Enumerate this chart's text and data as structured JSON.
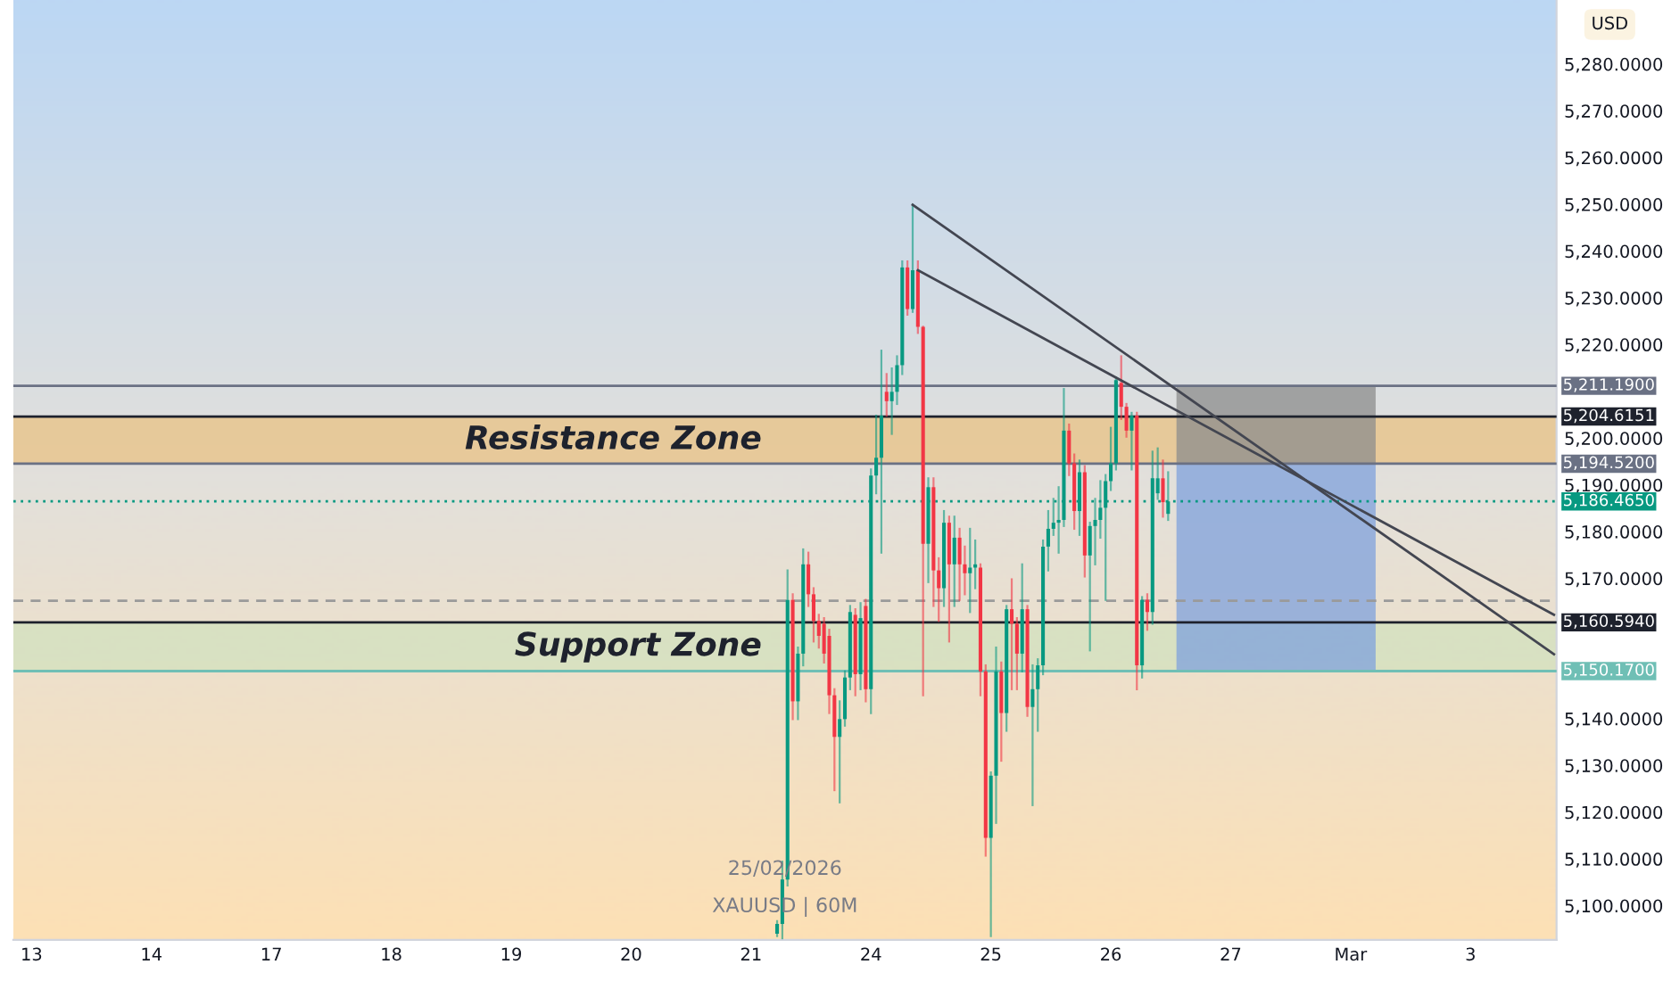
{
  "chart_data": {
    "type": "candlestick",
    "ylabel": "USD",
    "categories": [
      "13",
      null,
      null,
      null,
      null,
      null,
      null,
      null,
      null,
      null,
      null,
      null,
      null,
      null,
      null,
      null,
      null,
      null,
      null,
      null,
      null,
      null,
      null,
      "14",
      null,
      null,
      null,
      null,
      null,
      null,
      null,
      null,
      null,
      null,
      null,
      null,
      null,
      null,
      null,
      null,
      null,
      null,
      null,
      null,
      null,
      null,
      "17",
      null,
      null,
      null,
      null,
      null,
      null,
      null,
      null,
      null,
      null,
      null,
      null,
      null,
      null,
      null,
      null,
      null,
      null,
      null,
      null,
      null,
      null,
      "18",
      null,
      null,
      null,
      null,
      null,
      null,
      null,
      null,
      null,
      null,
      null,
      null,
      null,
      null,
      null,
      null,
      null,
      null,
      null,
      null,
      null,
      null,
      "19",
      null,
      null,
      null,
      null,
      null,
      null,
      null,
      null,
      null,
      null,
      null,
      null,
      null,
      null,
      null,
      null,
      null,
      null,
      null,
      null,
      null,
      null,
      "20",
      null,
      null,
      null,
      null,
      null,
      null,
      null,
      null,
      null,
      null,
      null,
      null,
      null,
      null,
      null,
      null,
      null,
      null,
      null,
      null,
      null,
      null,
      "21",
      null,
      null,
      null,
      null,
      null,
      null,
      null,
      null,
      null,
      null,
      null,
      null,
      null,
      null,
      null,
      null,
      null,
      null,
      null,
      null,
      null,
      null,
      "24",
      null,
      null,
      null,
      null,
      null,
      null,
      null,
      null,
      null,
      null,
      null,
      null,
      null,
      null,
      null,
      null,
      null,
      null,
      null,
      null,
      null,
      null,
      "25",
      null,
      null,
      null,
      null,
      null,
      null,
      null,
      null,
      null,
      null,
      null,
      null,
      null,
      null,
      null,
      null,
      null,
      null,
      null,
      null,
      null,
      null,
      "26",
      null,
      null,
      null,
      null,
      null,
      null,
      null,
      null,
      null,
      null,
      null,
      null,
      null,
      null,
      null,
      null,
      null,
      null,
      null,
      null,
      null,
      null,
      "27",
      null,
      null,
      null,
      null,
      null,
      null,
      null,
      null,
      null,
      null,
      null,
      null,
      null,
      null,
      null,
      null,
      null,
      null,
      null,
      null,
      null,
      null,
      "Mar",
      null,
      null,
      null,
      null,
      null,
      null,
      null,
      null,
      null,
      null,
      null,
      null,
      null,
      null,
      null,
      null,
      null,
      null,
      null,
      null,
      null,
      null,
      "3",
      null,
      null,
      null,
      null,
      null,
      null,
      null,
      null,
      null,
      null,
      null,
      null,
      null,
      null,
      null,
      null
    ],
    "ohlc": [
      null,
      null,
      null,
      null,
      null,
      null,
      null,
      null,
      null,
      null,
      null,
      null,
      null,
      null,
      null,
      null,
      null,
      null,
      null,
      null,
      null,
      null,
      null,
      null,
      null,
      null,
      null,
      null,
      null,
      null,
      null,
      null,
      null,
      null,
      null,
      null,
      null,
      null,
      null,
      null,
      null,
      null,
      null,
      null,
      null,
      null,
      null,
      null,
      null,
      null,
      null,
      null,
      null,
      null,
      null,
      null,
      null,
      null,
      null,
      null,
      null,
      null,
      null,
      null,
      null,
      null,
      null,
      null,
      null,
      null,
      null,
      null,
      null,
      null,
      null,
      null,
      null,
      null,
      null,
      null,
      null,
      null,
      null,
      null,
      null,
      null,
      null,
      null,
      null,
      null,
      null,
      null,
      null,
      null,
      null,
      null,
      null,
      null,
      null,
      null,
      null,
      null,
      null,
      null,
      null,
      null,
      null,
      null,
      null,
      null,
      null,
      null,
      null,
      null,
      null,
      null,
      null,
      null,
      null,
      null,
      null,
      null,
      null,
      null,
      null,
      null,
      null,
      null,
      null,
      null,
      null,
      null,
      null,
      null,
      null,
      null,
      null,
      null,
      null,
      null,
      null,
      null,
      null,
      [
        5094.0,
        5096.7,
        5093.5,
        5096.1
      ],
      [
        5096.1,
        5109.4,
        5093.0,
        5105.6
      ],
      [
        5105.6,
        5171.7,
        5104.3,
        5165.4
      ],
      [
        5165.4,
        5166.6,
        5139.9,
        5143.7
      ],
      [
        5143.7,
        5155.2,
        5139.9,
        5153.9
      ],
      [
        5153.9,
        5176.2,
        5151.4,
        5173.0
      ],
      [
        5173.0,
        5175.5,
        5164.1,
        5166.6
      ],
      [
        5166.6,
        5167.9,
        5156.5,
        5160.9
      ],
      [
        5160.9,
        5162.2,
        5155.2,
        5157.7
      ],
      [
        5160.3,
        5161.5,
        5152.0,
        5153.9
      ],
      [
        5157.7,
        5159.0,
        5141.2,
        5145.0
      ],
      [
        5145.0,
        5146.3,
        5124.7,
        5136.1
      ],
      [
        5136.1,
        5143.7,
        5122.1,
        5139.9
      ],
      [
        5139.9,
        5150.1,
        5138.5,
        5148.8
      ],
      [
        5148.8,
        5164.1,
        5146.3,
        5162.8
      ],
      [
        5162.2,
        5163.4,
        5145.0,
        5149.5
      ],
      [
        5149.5,
        5164.7,
        5146.3,
        5161.5
      ],
      [
        5164.1,
        5165.4,
        5143.7,
        5146.3
      ],
      [
        5146.3,
        5193.3,
        5141.2,
        5192.0
      ],
      [
        5192.0,
        5204.8,
        5188.2,
        5195.8
      ],
      [
        5195.8,
        5218.7,
        5175.5,
        5204.8
      ],
      [
        5209.9,
        5213.7,
        5204.8,
        5207.9
      ],
      [
        5207.9,
        5214.9,
        5200.9,
        5209.9
      ],
      [
        5209.9,
        5217.5,
        5207.3,
        5215.6
      ],
      [
        5215.6,
        5237.8,
        5213.7,
        5236.5
      ],
      [
        5236.5,
        5237.8,
        5226.4,
        5227.6
      ],
      [
        5227.6,
        5249.9,
        5227.0,
        5235.9
      ],
      [
        5235.9,
        5237.8,
        5222.5,
        5223.8
      ],
      [
        5223.8,
        5223.8,
        5145.0,
        5177.4
      ],
      [
        5177.4,
        5191.4,
        5169.2,
        5189.5
      ],
      [
        5189.5,
        5191.4,
        5164.1,
        5171.7
      ],
      [
        5171.7,
        5174.3,
        5160.9,
        5167.9
      ],
      [
        5167.9,
        5184.4,
        5164.1,
        5181.9
      ],
      [
        5181.9,
        5183.2,
        5156.5,
        5173.0
      ],
      [
        5173.0,
        5183.2,
        5164.1,
        5178.7
      ],
      [
        5178.7,
        5180.6,
        5165.4,
        5173.0
      ],
      [
        5173.0,
        5176.8,
        5166.6,
        5171.1
      ],
      [
        5171.1,
        5180.6,
        5162.8,
        5172.3
      ],
      [
        5172.3,
        5178.1,
        5167.9,
        5173.0
      ],
      [
        5172.3,
        5173.0,
        5145.0,
        5150.1
      ],
      [
        5150.1,
        5151.4,
        5110.7,
        5114.5
      ],
      [
        5114.5,
        5128.5,
        5093.5,
        5127.8
      ],
      [
        5127.8,
        5155.2,
        5117.7,
        5150.1
      ],
      [
        5150.1,
        5152.0,
        5131.0,
        5141.2
      ],
      [
        5141.2,
        5164.1,
        5137.4,
        5163.4
      ],
      [
        5163.4,
        5169.8,
        5146.3,
        5160.3
      ],
      [
        5160.3,
        5161.5,
        5146.3,
        5153.9
      ],
      [
        5153.9,
        5173.0,
        5150.1,
        5163.4
      ],
      [
        5163.4,
        5164.1,
        5140.6,
        5142.5
      ],
      [
        5142.5,
        5151.4,
        5121.5,
        5146.3
      ],
      [
        5146.3,
        5152.7,
        5137.4,
        5151.4
      ],
      [
        5151.4,
        5178.1,
        5149.5,
        5176.8
      ],
      [
        5176.8,
        5184.4,
        5171.7,
        5180.6
      ],
      [
        5180.6,
        5187.0,
        5179.3,
        5181.9
      ],
      [
        5181.9,
        5189.5,
        5175.5,
        5182.5
      ],
      [
        5182.5,
        5210.5,
        5181.2,
        5201.6
      ],
      [
        5201.6,
        5202.9,
        5192.1,
        5194.6
      ],
      [
        5194.6,
        5196.5,
        5180.6,
        5184.4
      ],
      [
        5184.4,
        5195.2,
        5179.3,
        5192.7
      ],
      [
        5192.7,
        5194.0,
        5170.4,
        5174.9
      ],
      [
        5174.9,
        5181.9,
        5154.6,
        5181.2
      ],
      [
        5181.2,
        5187.0,
        5173.0,
        5182.5
      ],
      [
        5182.5,
        5190.8,
        5178.7,
        5185.1
      ],
      [
        5185.1,
        5192.1,
        5165.4,
        5190.8
      ],
      [
        5190.8,
        5202.2,
        5188.9,
        5194.6
      ],
      [
        5194.6,
        5213.0,
        5193.3,
        5212.4
      ],
      [
        5211.8,
        5217.5,
        5204.1,
        5206.7
      ],
      [
        5206.7,
        5207.3,
        5200.3,
        5201.6
      ],
      [
        5201.6,
        5205.4,
        5193.3,
        5204.8
      ],
      [
        5204.8,
        5205.4,
        5146.3,
        5151.4
      ],
      [
        5151.4,
        5166.0,
        5148.8,
        5165.4
      ],
      [
        5165.4,
        5166.6,
        5159.0,
        5162.8
      ],
      [
        5162.8,
        5197.1,
        5160.3,
        5191.4
      ],
      [
        5188.2,
        5197.8,
        5187.0,
        5191.4
      ],
      [
        5191.4,
        5195.2,
        5183.2,
        5186.3
      ],
      [
        5183.8,
        5192.7,
        5182.5,
        5186.465
      ],
      null,
      null,
      null,
      null,
      null,
      null,
      null,
      null,
      null,
      null,
      null,
      null,
      null,
      null,
      null,
      null,
      null,
      null,
      null,
      null,
      null,
      null,
      null,
      null,
      null,
      null,
      null,
      null,
      null,
      null,
      null,
      null,
      null,
      null,
      null,
      null,
      null,
      null,
      null,
      null,
      null,
      null,
      null,
      null,
      null,
      null,
      null,
      null,
      null,
      null,
      null,
      null,
      null,
      null,
      null,
      null,
      null,
      null,
      null,
      null,
      null,
      null,
      null,
      null,
      null,
      null,
      null,
      null,
      null,
      null,
      null,
      null,
      null,
      null
    ],
    "series": [
      {
        "type": "line",
        "color": "#434651",
        "values": [
          null,
          null,
          null,
          null,
          null,
          null,
          null,
          null,
          null,
          null,
          null,
          null,
          null,
          null,
          null,
          null,
          null,
          null,
          null,
          null,
          null,
          null,
          null,
          null,
          null,
          null,
          null,
          null,
          null,
          null,
          null,
          null,
          null,
          null,
          null,
          null,
          null,
          null,
          null,
          null,
          null,
          null,
          null,
          null,
          null,
          null,
          null,
          null,
          null,
          null,
          null,
          null,
          null,
          null,
          null,
          null,
          null,
          null,
          null,
          null,
          null,
          null,
          null,
          null,
          null,
          null,
          null,
          null,
          null,
          null,
          null,
          null,
          null,
          null,
          null,
          null,
          null,
          null,
          null,
          null,
          null,
          null,
          null,
          null,
          null,
          null,
          null,
          null,
          null,
          null,
          null,
          null,
          null,
          null,
          null,
          null,
          null,
          null,
          null,
          null,
          null,
          null,
          null,
          null,
          null,
          null,
          null,
          null,
          null,
          null,
          null,
          null,
          null,
          null,
          null,
          null,
          null,
          null,
          null,
          null,
          null,
          null,
          null,
          null,
          null,
          null,
          null,
          null,
          null,
          null,
          null,
          null,
          null,
          null,
          null,
          null,
          null,
          null,
          null,
          null,
          null,
          null,
          null,
          null,
          null,
          null,
          null,
          null,
          null,
          null,
          null,
          null,
          null,
          null,
          null,
          null,
          null,
          null,
          null,
          null,
          null,
          null,
          null,
          null,
          null,
          null,
          null,
          null,
          null,
          5249.9,
          null,
          null,
          null,
          null,
          null,
          null,
          null,
          null,
          null,
          null,
          null,
          null,
          null,
          null,
          null,
          null,
          null,
          null,
          null,
          null,
          null,
          null,
          null,
          null,
          null,
          null,
          null,
          null,
          null,
          null,
          null,
          null,
          null,
          null,
          null,
          null,
          null,
          null,
          null,
          null,
          null,
          null,
          null,
          null,
          null,
          null,
          null,
          null,
          null,
          null,
          null,
          null,
          null,
          null,
          null,
          null,
          null,
          null,
          null,
          null,
          null,
          null,
          null,
          null,
          null,
          null,
          null,
          null,
          null,
          null,
          null,
          null,
          null,
          null,
          null,
          null,
          null,
          null,
          null,
          null,
          null,
          null,
          null,
          null,
          null,
          null,
          null,
          null,
          null,
          null,
          null,
          null,
          null,
          null,
          null,
          null,
          null,
          null,
          null,
          null,
          null,
          null,
          null,
          null,
          null,
          null,
          null,
          null,
          null,
          null,
          null,
          null,
          null,
          null,
          null,
          null,
          null,
          null,
          null,
          null,
          null,
          null,
          5153.8
        ]
      },
      {
        "type": "line",
        "color": "#434651",
        "values": [
          null,
          null,
          null,
          null,
          null,
          null,
          null,
          null,
          null,
          null,
          null,
          null,
          null,
          null,
          null,
          null,
          null,
          null,
          null,
          null,
          null,
          null,
          null,
          null,
          null,
          null,
          null,
          null,
          null,
          null,
          null,
          null,
          null,
          null,
          null,
          null,
          null,
          null,
          null,
          null,
          null,
          null,
          null,
          null,
          null,
          null,
          null,
          null,
          null,
          null,
          null,
          null,
          null,
          null,
          null,
          null,
          null,
          null,
          null,
          null,
          null,
          null,
          null,
          null,
          null,
          null,
          null,
          null,
          null,
          null,
          null,
          null,
          null,
          null,
          null,
          null,
          null,
          null,
          null,
          null,
          null,
          null,
          null,
          null,
          null,
          null,
          null,
          null,
          null,
          null,
          null,
          null,
          null,
          null,
          null,
          null,
          null,
          null,
          null,
          null,
          null,
          null,
          null,
          null,
          null,
          null,
          null,
          null,
          null,
          null,
          null,
          null,
          null,
          null,
          null,
          null,
          null,
          null,
          null,
          null,
          null,
          null,
          null,
          null,
          null,
          null,
          null,
          null,
          null,
          null,
          null,
          null,
          null,
          null,
          null,
          null,
          null,
          null,
          null,
          null,
          null,
          null,
          null,
          null,
          null,
          null,
          null,
          null,
          null,
          null,
          null,
          null,
          null,
          null,
          null,
          null,
          null,
          null,
          null,
          null,
          null,
          null,
          null,
          null,
          null,
          null,
          null,
          null,
          null,
          null,
          5235.9,
          null,
          null,
          null,
          null,
          null,
          null,
          null,
          null,
          null,
          null,
          null,
          null,
          null,
          null,
          null,
          null,
          null,
          null,
          null,
          null,
          null,
          null,
          null,
          null,
          null,
          null,
          null,
          null,
          null,
          null,
          null,
          null,
          null,
          null,
          null,
          null,
          null,
          null,
          null,
          null,
          null,
          null,
          null,
          null,
          null,
          null,
          null,
          null,
          null,
          null,
          null,
          null,
          null,
          null,
          null,
          null,
          null,
          null,
          null,
          null,
          null,
          null,
          null,
          null,
          null,
          null,
          null,
          null,
          null,
          null,
          null,
          null,
          null,
          null,
          null,
          null,
          null,
          null,
          null,
          null,
          null,
          null,
          null,
          null,
          null,
          null,
          null,
          null,
          null,
          null,
          null,
          null,
          null,
          null,
          null,
          null,
          null,
          null,
          null,
          null,
          null,
          null,
          null,
          null,
          null,
          null,
          null,
          null,
          null,
          null,
          null,
          null,
          null,
          null,
          null,
          null,
          null,
          null,
          null,
          null,
          null,
          5162.2
        ]
      }
    ],
    "bands": [
      {
        "axis": "y",
        "from": 5194.52,
        "to": 5204.6151,
        "label": "Resistance Zone",
        "color": "#e8c58e"
      },
      {
        "axis": "y",
        "from": 5150.17,
        "to": 5160.594,
        "label": "Support Zone",
        "color": "#d5e0bf"
      },
      {
        "axis": "y",
        "from": 5194.52,
        "to": 5211.19,
        "color": "#8c8c8c"
      },
      {
        "axis": "y",
        "from": 5150.17,
        "to": 5194.52,
        "color": "#7fa2dc"
      }
    ],
    "ref_lines": [
      {
        "axis": "y",
        "value": 5211.19,
        "label": "5,211.1900",
        "color": "#6a7184"
      },
      {
        "axis": "y",
        "value": 5204.6151,
        "label": "5,204.6151",
        "color": "#1e222d"
      },
      {
        "axis": "y",
        "value": 5194.52,
        "label": "5,194.5200",
        "color": "#6a7184"
      },
      {
        "axis": "y",
        "value": 5186.465,
        "label": "5,186.4650",
        "color": "#089981",
        "line_style": "dotted"
      },
      {
        "axis": "y",
        "value": 5165.2,
        "color": "#9a9a9a",
        "line_style": "dashed"
      },
      {
        "axis": "y",
        "value": 5160.594,
        "label": "5,160.5940",
        "color": "#1e222d"
      },
      {
        "axis": "y",
        "value": 5150.17,
        "label": "5,150.1700",
        "color": "#6fbfb5"
      }
    ],
    "annotations": [
      "25/02/2026",
      "XAUUSD | 60M"
    ],
    "ylim": [
      5092.7,
      5293.7
    ],
    "yticks": [
      {
        "value": 5100,
        "label": "5,100.0000"
      },
      {
        "value": 5110,
        "label": "5,110.0000"
      },
      {
        "value": 5120,
        "label": "5,120.0000"
      },
      {
        "value": 5130,
        "label": "5,130.0000"
      },
      {
        "value": 5140,
        "label": "5,140.0000"
      },
      {
        "value": 5170,
        "label": "5,170.0000"
      },
      {
        "value": 5180,
        "label": "5,180.0000"
      },
      {
        "value": 5190,
        "label": "5,190.0000"
      },
      {
        "value": 5200,
        "label": "5,200.0000"
      },
      {
        "value": 5220,
        "label": "5,220.0000"
      },
      {
        "value": 5230,
        "label": "5,230.0000"
      },
      {
        "value": 5240,
        "label": "5,240.0000"
      },
      {
        "value": 5250,
        "label": "5,250.0000"
      },
      {
        "value": 5260,
        "label": "5,260.0000"
      },
      {
        "value": 5270,
        "label": "5,270.0000"
      },
      {
        "value": 5280,
        "label": "5,280.0000"
      }
    ]
  }
}
